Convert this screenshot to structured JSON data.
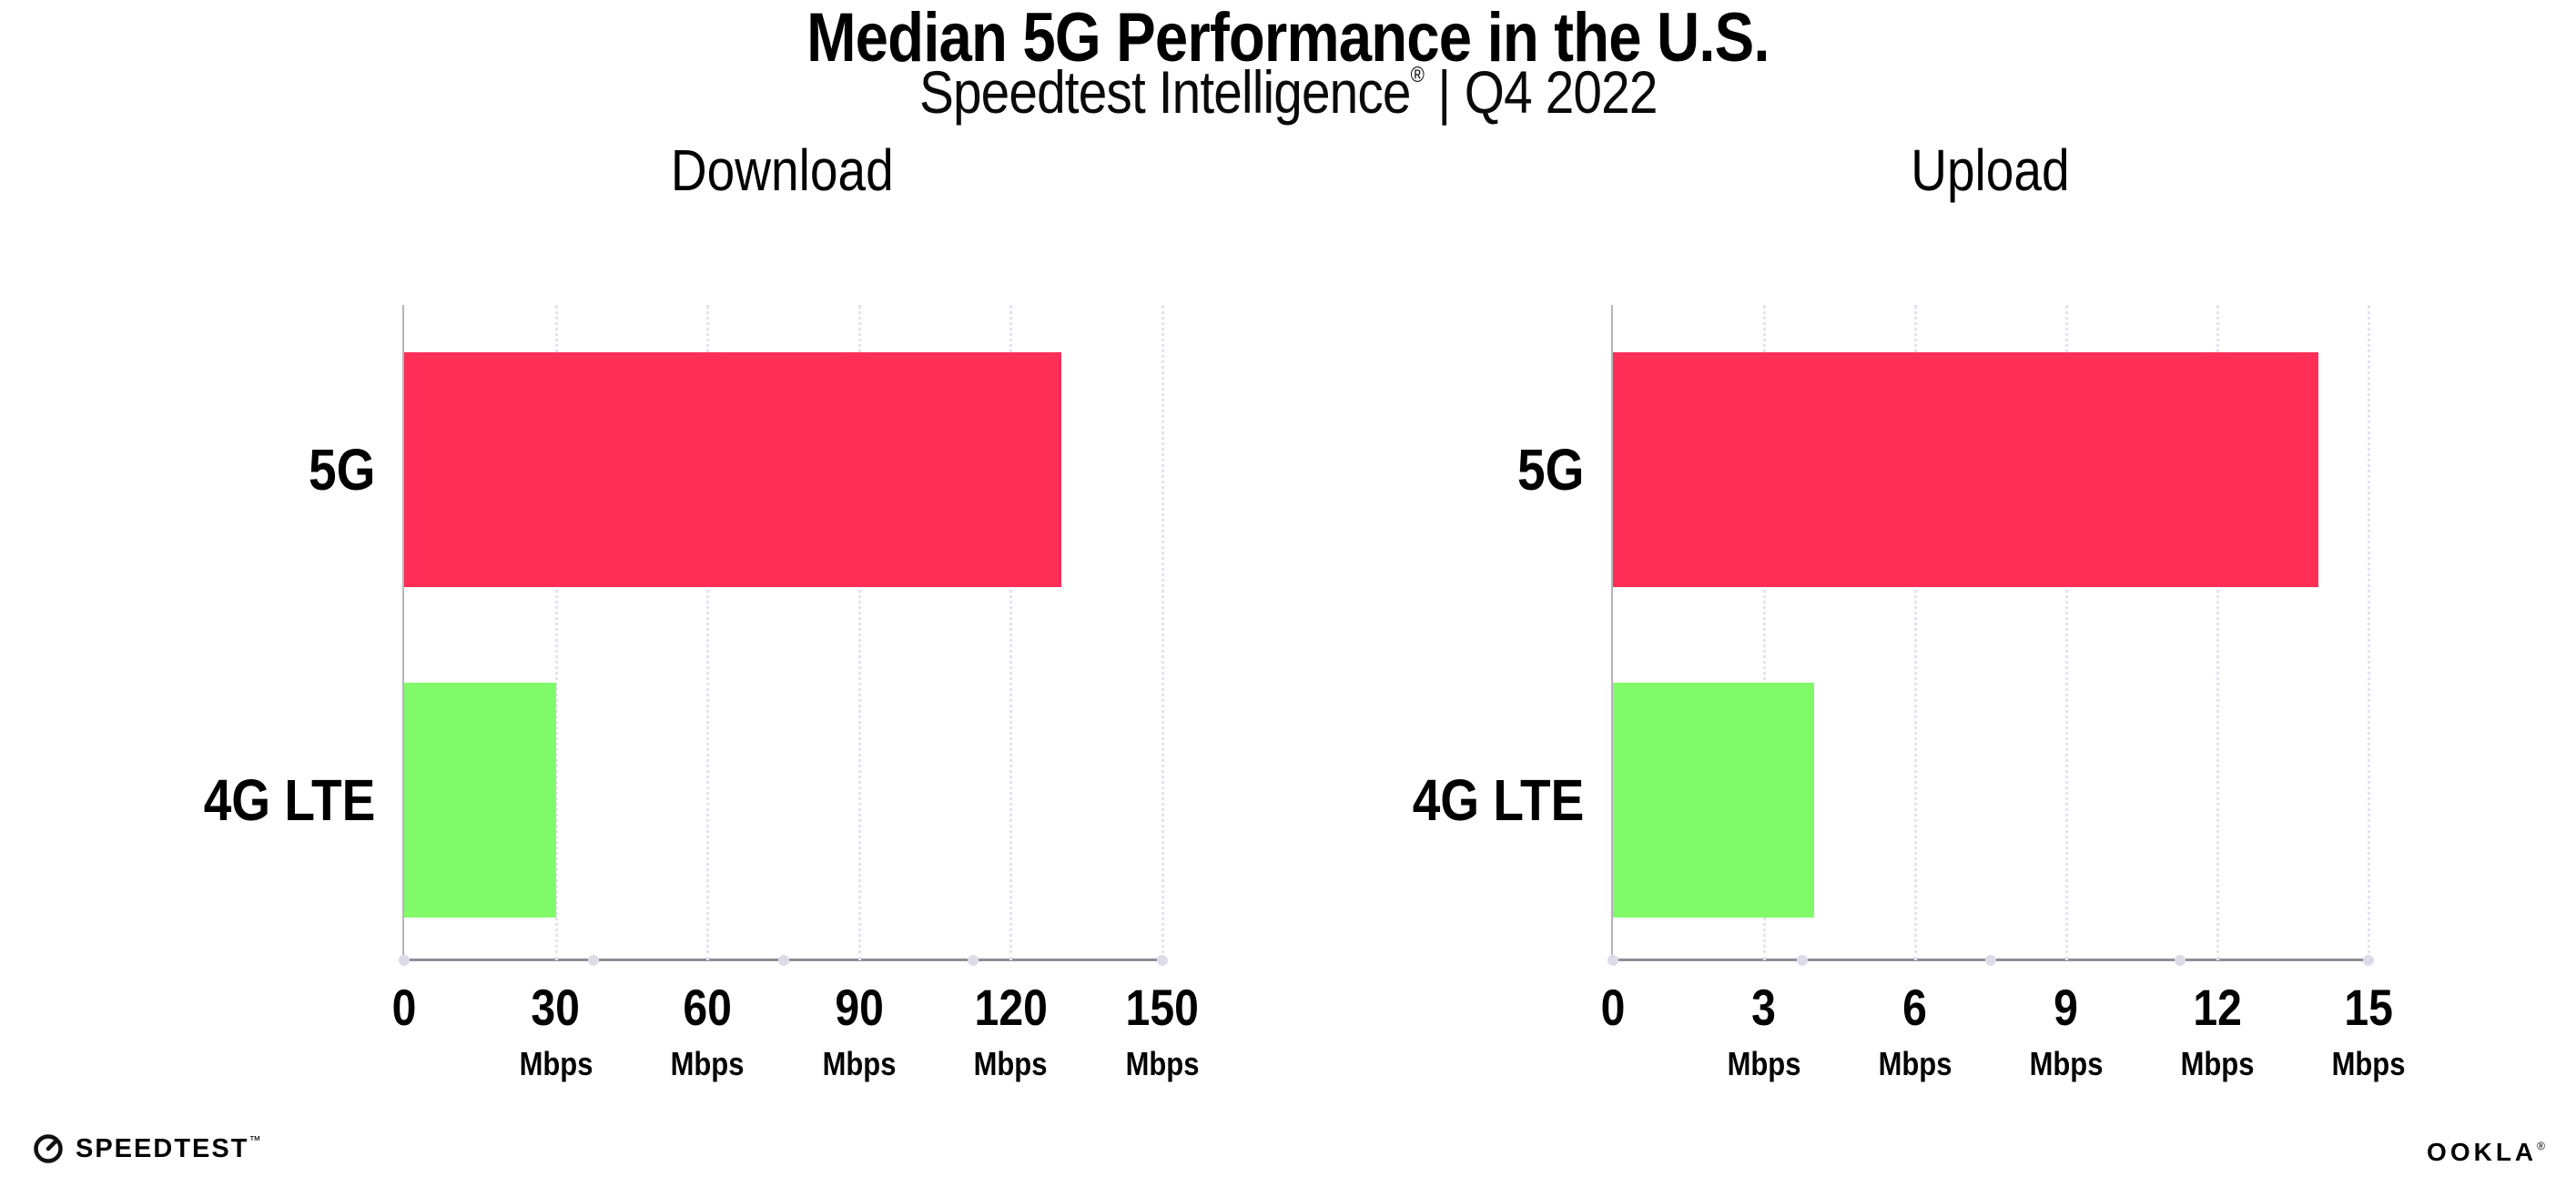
{
  "header": {
    "title": "Median 5G Performance in the U.S.",
    "subtitle_brand": "Speedtest Intelligence",
    "subtitle_reg": "®",
    "subtitle_separator": "|",
    "subtitle_period": "Q4 2022"
  },
  "chart_data": [
    {
      "type": "bar",
      "orientation": "horizontal",
      "title": "Download",
      "categories": [
        "5G",
        "4G LTE"
      ],
      "values": [
        130,
        30
      ],
      "unit": "Mbps",
      "xlim": [
        0,
        150
      ],
      "xticks": [
        0,
        30,
        60,
        90,
        120,
        150
      ],
      "bar_colors": [
        "#fe2e57",
        "#80fa68"
      ],
      "grid": "dotted-vertical",
      "legend": "none"
    },
    {
      "type": "bar",
      "orientation": "horizontal",
      "title": "Upload",
      "categories": [
        "5G",
        "4G LTE"
      ],
      "values": [
        14,
        4
      ],
      "unit": "Mbps",
      "xlim": [
        0,
        15
      ],
      "xticks": [
        0,
        3,
        6,
        9,
        12,
        15
      ],
      "bar_colors": [
        "#fe2e57",
        "#80fa68"
      ],
      "grid": "dotted-vertical",
      "legend": "none"
    }
  ],
  "footer": {
    "speedtest_label": "SPEEDTEST",
    "speedtest_tm": "™",
    "ookla_label": "OOKLA",
    "ookla_reg": "®"
  },
  "colors": {
    "bar_5g": "#fe2e57",
    "bar_4g_lte": "#80fa68",
    "axis": "#8f8f97",
    "y_axis": "#b4b4bc",
    "gridline": "#e3e3ef",
    "axis_dots": "#dcdce8",
    "text": "#000000"
  }
}
